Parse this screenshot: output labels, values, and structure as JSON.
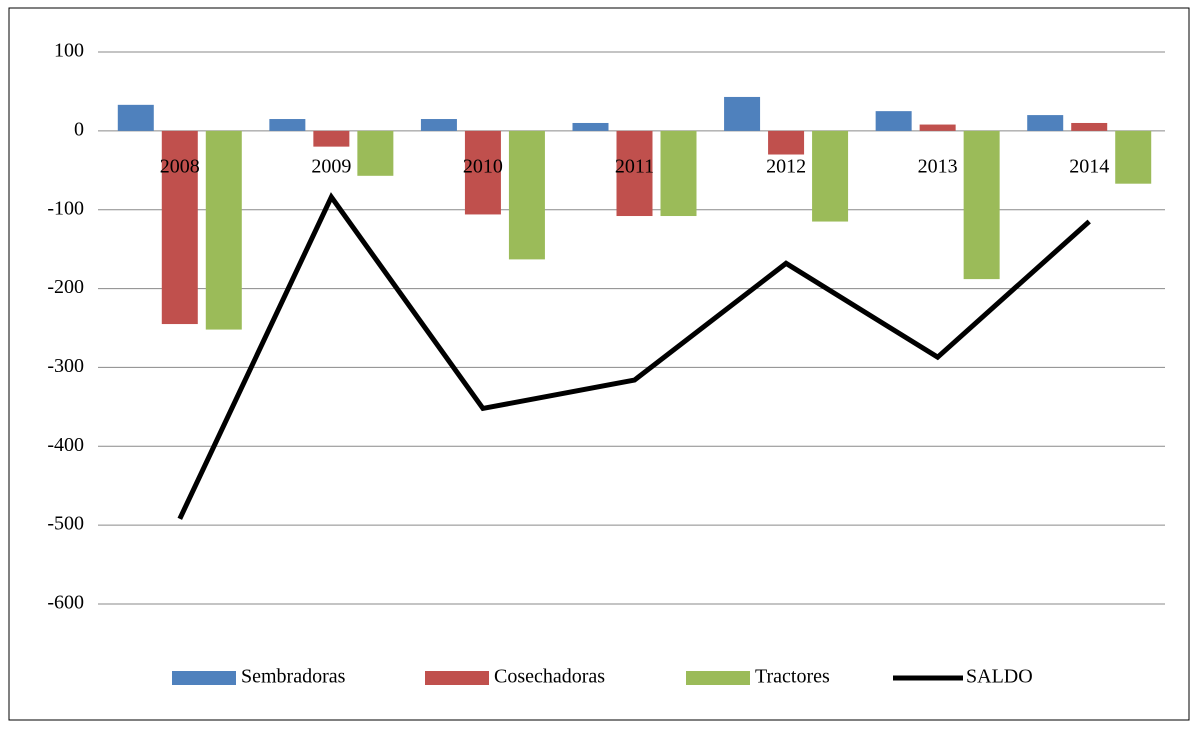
{
  "chart_data": {
    "type": "bar",
    "categories": [
      "2008",
      "2009",
      "2010",
      "2011",
      "2012",
      "2013",
      "2014"
    ],
    "series": [
      {
        "name": "Sembradoras",
        "color": "#4f81bd",
        "values": [
          33,
          15,
          15,
          10,
          43,
          25,
          20
        ]
      },
      {
        "name": "Cosechadoras",
        "color": "#c0504d",
        "values": [
          -245,
          -20,
          -106,
          -108,
          -30,
          8,
          10
        ]
      },
      {
        "name": "Tractores",
        "color": "#9bbb59",
        "values": [
          -252,
          -57,
          -163,
          -108,
          -115,
          -188,
          -67
        ]
      },
      {
        "name": "SALDO",
        "color": "#000000",
        "type": "line",
        "values": [
          -492,
          -84,
          -352,
          -316,
          -168,
          -287,
          -115
        ]
      }
    ],
    "ylim": [
      -600,
      100
    ],
    "yticks": [
      -600,
      -500,
      -400,
      -300,
      -200,
      -100,
      0,
      100
    ],
    "grid": true,
    "legend": "bottom"
  }
}
